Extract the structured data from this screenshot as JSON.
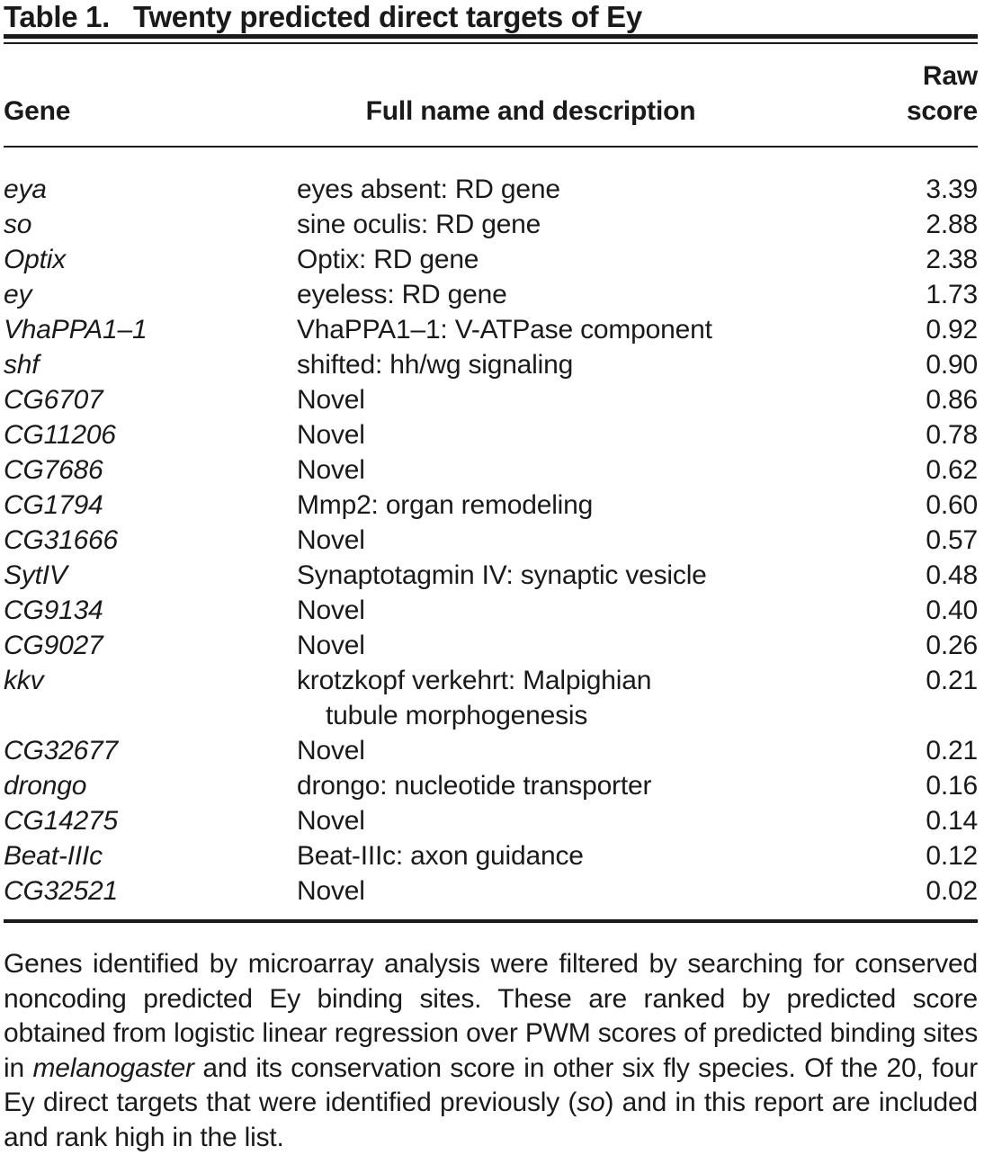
{
  "colors": {
    "text": "#1a1a1a",
    "rule": "#1a1a1a",
    "background": "#ffffff"
  },
  "table": {
    "label": "Table 1.",
    "caption": "Twenty predicted direct targets of Ey",
    "columns": {
      "gene": "Gene",
      "description": "Full name and description",
      "score_line1": "Raw",
      "score_line2": "score"
    },
    "rows": [
      {
        "gene": "eya",
        "description": [
          "eyes absent: RD gene"
        ],
        "score": "3.39"
      },
      {
        "gene": "so",
        "description": [
          "sine oculis: RD gene"
        ],
        "score": "2.88"
      },
      {
        "gene": "Optix",
        "description": [
          "Optix: RD gene"
        ],
        "score": "2.38"
      },
      {
        "gene": "ey",
        "description": [
          "eyeless: RD gene"
        ],
        "score": "1.73"
      },
      {
        "gene": "VhaPPA1–1",
        "description": [
          "VhaPPA1–1: V-ATPase component"
        ],
        "score": "0.92"
      },
      {
        "gene": "shf",
        "description": [
          "shifted: hh/wg signaling"
        ],
        "score": "0.90"
      },
      {
        "gene": "CG6707",
        "description": [
          "Novel"
        ],
        "score": "0.86"
      },
      {
        "gene": "CG11206",
        "description": [
          "Novel"
        ],
        "score": "0.78"
      },
      {
        "gene": "CG7686",
        "description": [
          "Novel"
        ],
        "score": "0.62"
      },
      {
        "gene": "CG1794",
        "description": [
          "Mmp2: organ remodeling"
        ],
        "score": "0.60"
      },
      {
        "gene": "CG31666",
        "description": [
          "Novel"
        ],
        "score": "0.57"
      },
      {
        "gene": "SytIV",
        "description": [
          "Synaptotagmin IV: synaptic vesicle"
        ],
        "score": "0.48"
      },
      {
        "gene": "CG9134",
        "description": [
          "Novel"
        ],
        "score": "0.40"
      },
      {
        "gene": "CG9027",
        "description": [
          "Novel"
        ],
        "score": "0.26"
      },
      {
        "gene": "kkv",
        "description": [
          "krotzkopf verkehrt: Malpighian",
          "tubule morphogenesis"
        ],
        "score": "0.21"
      },
      {
        "gene": "CG32677",
        "description": [
          "Novel"
        ],
        "score": "0.21"
      },
      {
        "gene": "drongo",
        "description": [
          "drongo: nucleotide transporter"
        ],
        "score": "0.16"
      },
      {
        "gene": "CG14275",
        "description": [
          "Novel"
        ],
        "score": "0.14"
      },
      {
        "gene": "Beat-IIIc",
        "description": [
          "Beat-IIIc: axon guidance"
        ],
        "score": "0.12"
      },
      {
        "gene": "CG32521",
        "description": [
          "Novel"
        ],
        "score": "0.02"
      }
    ]
  },
  "footnote": {
    "segments": [
      {
        "text": "Genes identified by microarray analysis were filtered by searching for conserved noncoding predicted Ey binding sites. These are ranked by predicted score obtained from logistic linear regression over PWM scores of predicted binding sites in ",
        "italic": false
      },
      {
        "text": "melanogaster",
        "italic": true
      },
      {
        "text": " and its conservation score in other six fly species. Of the 20, four Ey direct targets that were identified previously (",
        "italic": false
      },
      {
        "text": "so",
        "italic": true
      },
      {
        "text": ") and in this report are included and rank high in the list.",
        "italic": false
      }
    ]
  }
}
